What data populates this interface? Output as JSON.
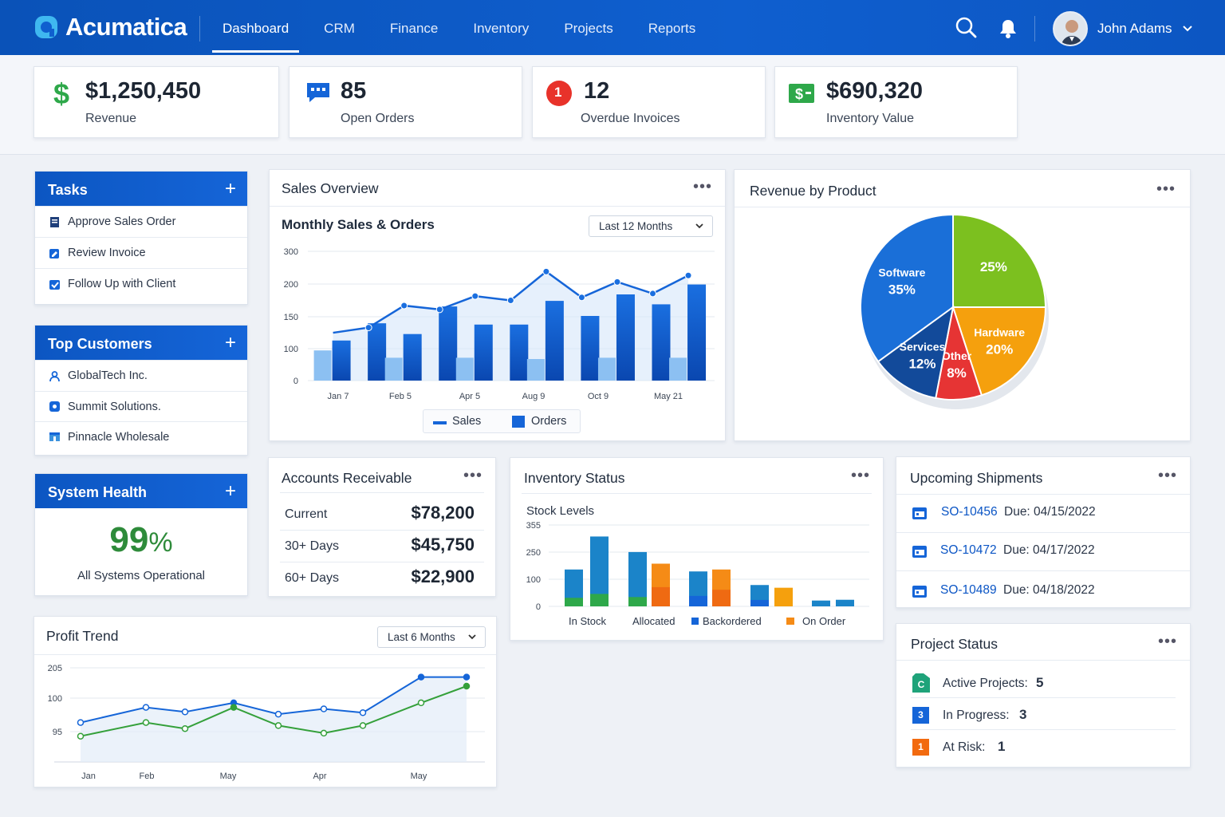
{
  "app": {
    "name": "Acumatica"
  },
  "nav": [
    "Dashboard",
    "CRM",
    "Finance",
    "Inventory",
    "Projects",
    "Reports"
  ],
  "user": {
    "name": "John Adams"
  },
  "kpis": [
    {
      "value": "$1,250,450",
      "label": "Revenue",
      "icon": "dollar-icon"
    },
    {
      "value": "85",
      "label": "Open Orders",
      "icon": "chat-icon"
    },
    {
      "value": "12",
      "label": "Overdue Invoices",
      "icon": "alert-badge",
      "badge": "1"
    },
    {
      "value": "$690,320",
      "label": "Inventory Value",
      "icon": "money-icon"
    }
  ],
  "tasks": {
    "title": "Tasks",
    "items": [
      "Approve Sales Order",
      "Review Invoice",
      "Follow Up with Client"
    ]
  },
  "customers": {
    "title": "Top Customers",
    "items": [
      "GlobalTech Inc.",
      "Summit Solutions.",
      "Pinnacle Wholesale"
    ]
  },
  "health": {
    "title": "System Health",
    "value": "99",
    "unit": "%",
    "status": "All Systems Operational"
  },
  "sales_overview": {
    "title": "Sales Overview",
    "subtitle": "Monthly Sales & Orders",
    "range": "Last 12 Months"
  },
  "revenue_product": {
    "title": "Revenue by Product"
  },
  "ar": {
    "title": "Accounts Receivable",
    "rows": [
      {
        "label": "Current",
        "value": "$78,200"
      },
      {
        "label": "30+ Days",
        "value": "$45,750"
      },
      {
        "label": "60+ Days",
        "value": "$22,900"
      }
    ]
  },
  "inventory_status": {
    "title": "Inventory Status",
    "subtitle": "Stock Levels"
  },
  "shipments": {
    "title": "Upcoming Shipments",
    "rows": [
      {
        "id": "SO-10456",
        "due": "Due: 04/15/2022"
      },
      {
        "id": "SO-10472",
        "due": "Due: 04/17/2022"
      },
      {
        "id": "SO-10489",
        "due": "Due: 04/18/2022"
      }
    ]
  },
  "profit": {
    "title": "Profit Trend",
    "range": "Last 6 Months"
  },
  "projects": {
    "title": "Project Status",
    "rows": [
      {
        "label": "Active Projects:",
        "value": "5",
        "badge": "C",
        "color": "#1fa37a"
      },
      {
        "label": "In Progress:",
        "value": "3",
        "badge": "3",
        "color": "#1565d8"
      },
      {
        "label": "At Risk:",
        "value": "1",
        "badge": "1",
        "color": "#f26a0f"
      }
    ]
  },
  "chart_data": [
    {
      "type": "bar",
      "title": "Monthly Sales & Orders",
      "x_tick_labels": [
        "Jan 7",
        "Feb 5",
        "Apr 5",
        "Aug 9",
        "Oct 9",
        "May 21"
      ],
      "y_tick_labels": [
        "300",
        "200",
        "150",
        "100",
        "0"
      ],
      "ylim": [
        0,
        300
      ],
      "legend": [
        "Sales",
        "Orders"
      ],
      "series": [
        {
          "name": "Orders",
          "kind": "bar",
          "values": [
            93,
            133,
            108,
            172,
            130,
            130,
            185,
            150,
            200,
            177,
            223
          ]
        },
        {
          "name": "Sales",
          "kind": "line",
          "values": [
            111,
            123,
            174,
            165,
            196,
            186,
            253,
            193,
            229,
            202,
            244
          ]
        }
      ],
      "light_bars": [
        70,
        0,
        53,
        0,
        53,
        0,
        50,
        0,
        53,
        0,
        53
      ]
    },
    {
      "type": "pie",
      "title": "Revenue by Product",
      "slices": [
        {
          "label": "Software",
          "value": 35,
          "color": "#1a6fd8"
        },
        {
          "label": "",
          "value": 25,
          "color": "#7cc01f"
        },
        {
          "label": "Hardware",
          "value": 20,
          "color": "#f5a00d"
        },
        {
          "label": "Other",
          "value": 8,
          "color": "#e63434"
        },
        {
          "label": "Services",
          "value": 12,
          "color": "#124a9a"
        }
      ]
    },
    {
      "type": "bar",
      "title": "Stock Levels",
      "y_tick_labels": [
        "355",
        "250",
        "100",
        "0"
      ],
      "legend": [
        "In Stock",
        "Allocated",
        "Backordered",
        "On Order"
      ],
      "stacks": [
        {
          "color_top": "#1b84c9",
          "top": 95,
          "bottom": 55
        },
        {
          "color_top": "#1b84c9",
          "top": 180,
          "bottom": 80
        },
        {
          "color_top": "#1b84c9",
          "top": 140,
          "bottom": 60
        },
        {
          "color_top": "#f58b16",
          "top": 110,
          "bottom": 0
        },
        {
          "color_top": "#1b84c9",
          "top": 90,
          "bottom": 0
        },
        {
          "color_top": "#f58b16",
          "top": 95,
          "bottom": 0
        },
        {
          "color_top": "#1b84c9",
          "top": 55,
          "bottom": 0
        },
        {
          "color_top": "#f5a00d",
          "top": 48,
          "bottom": 0
        },
        {
          "color_top": "#1b84c9",
          "top": 15,
          "bottom": 0
        },
        {
          "color_top": "#1b84c9",
          "top": 17,
          "bottom": 0
        }
      ]
    },
    {
      "type": "line",
      "title": "Profit Trend",
      "x_tick_labels": [
        "Jan",
        "Feb",
        "May",
        "Apr",
        "May"
      ],
      "y_tick_labels": [
        "205",
        "100",
        "95"
      ],
      "series": [
        {
          "name": "",
          "color": "#1565d8",
          "values": [
            52,
            72,
            66,
            78,
            63,
            70,
            65,
            112,
            112
          ]
        },
        {
          "name": "",
          "color": "#34a03a",
          "values": [
            34,
            52,
            44,
            72,
            48,
            38,
            48,
            78,
            100
          ]
        }
      ]
    }
  ]
}
